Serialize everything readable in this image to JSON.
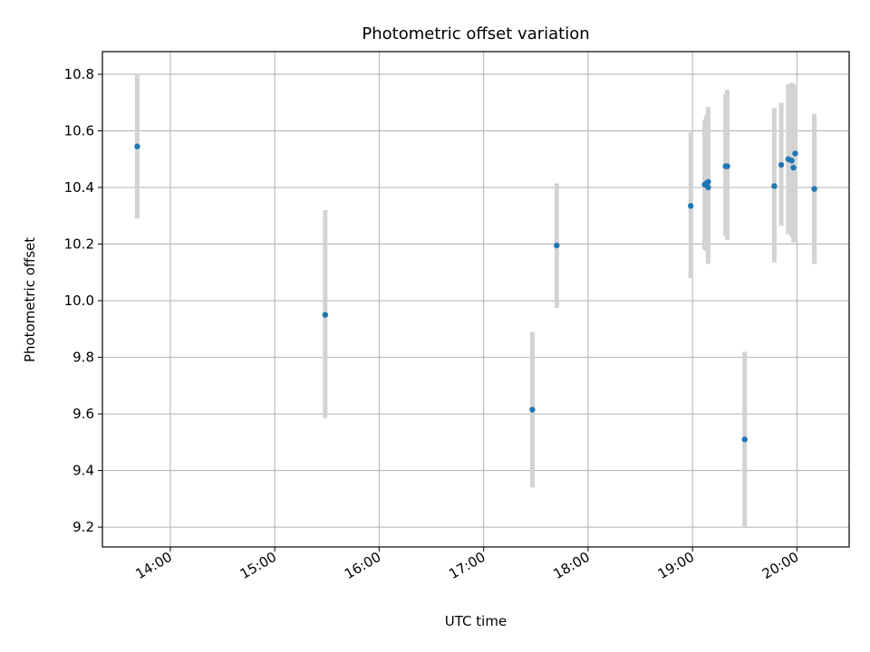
{
  "chart_data": {
    "type": "scatter",
    "title": "Photometric offset variation",
    "xlabel": "UTC time",
    "ylabel": "Photometric offset",
    "grid": true,
    "xlim": [
      "13:21",
      "20:30"
    ],
    "ylim": [
      9.13,
      10.88
    ],
    "x_ticks": [
      "14:00",
      "15:00",
      "16:00",
      "17:00",
      "18:00",
      "19:00",
      "20:00"
    ],
    "y_ticks": [
      "9.2",
      "9.4",
      "9.6",
      "9.8",
      "10.0",
      "10.2",
      "10.4",
      "10.6",
      "10.8"
    ],
    "marker_color": "#1f77b4",
    "errorbar_color": "#d3d3d3",
    "points": [
      {
        "x": "13:41",
        "y": 10.545,
        "y_low": 10.29,
        "y_high": 10.8
      },
      {
        "x": "15:29",
        "y": 9.95,
        "y_low": 9.585,
        "y_high": 10.32
      },
      {
        "x": "17:28",
        "y": 9.615,
        "y_low": 9.34,
        "y_high": 9.89
      },
      {
        "x": "17:42",
        "y": 10.195,
        "y_low": 9.975,
        "y_high": 10.415
      },
      {
        "x": "18:59",
        "y": 10.335,
        "y_low": 10.08,
        "y_high": 10.595
      },
      {
        "x": "19:07",
        "y": 10.41,
        "y_low": 10.18,
        "y_high": 10.64
      },
      {
        "x": "19:08",
        "y": 10.415,
        "y_low": 10.175,
        "y_high": 10.655
      },
      {
        "x": "19:09",
        "y": 10.4,
        "y_low": 10.13,
        "y_high": 10.67
      },
      {
        "x": "19:09",
        "y": 10.42,
        "y_low": 10.15,
        "y_high": 10.685
      },
      {
        "x": "19:19",
        "y": 10.475,
        "y_low": 10.23,
        "y_high": 10.73
      },
      {
        "x": "19:20",
        "y": 10.475,
        "y_low": 10.215,
        "y_high": 10.745
      },
      {
        "x": "19:30",
        "y": 9.51,
        "y_low": 9.2,
        "y_high": 9.82
      },
      {
        "x": "19:47",
        "y": 10.405,
        "y_low": 10.135,
        "y_high": 10.68
      },
      {
        "x": "19:51",
        "y": 10.48,
        "y_low": 10.265,
        "y_high": 10.7
      },
      {
        "x": "19:55",
        "y": 10.5,
        "y_low": 10.235,
        "y_high": 10.765
      },
      {
        "x": "19:57",
        "y": 10.495,
        "y_low": 10.225,
        "y_high": 10.77
      },
      {
        "x": "19:58",
        "y": 10.47,
        "y_low": 10.205,
        "y_high": 10.765
      },
      {
        "x": "19:59",
        "y": 10.52,
        "y_low": 10.21,
        "y_high": 10.76
      },
      {
        "x": "20:10",
        "y": 10.395,
        "y_low": 10.13,
        "y_high": 10.66
      }
    ]
  }
}
